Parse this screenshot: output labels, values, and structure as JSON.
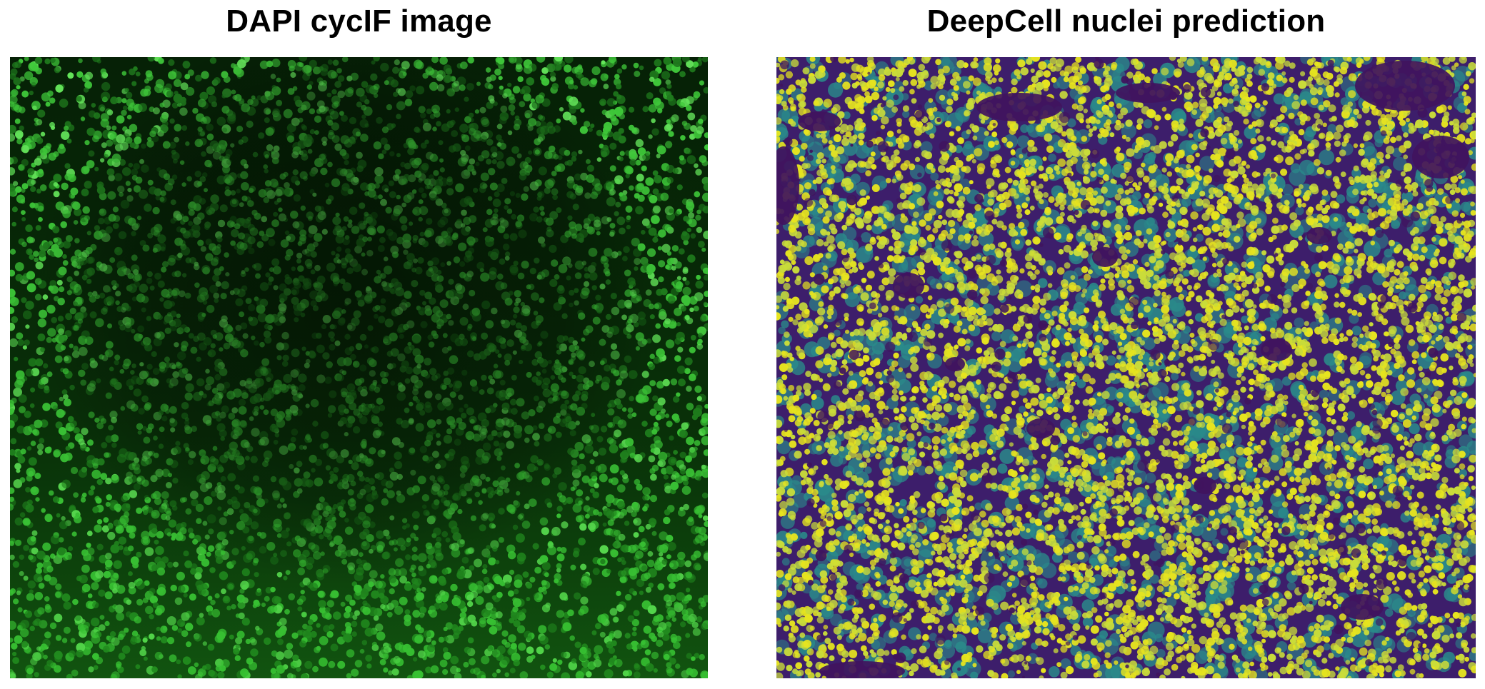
{
  "panels": [
    {
      "title": "DAPI cycIF image",
      "image_icon": "dapi-green-fluorescence-image",
      "colors": {
        "background": "#062106",
        "nuclei": "#3fc93a",
        "nuclei_bright": "#66e85c",
        "nuclei_dim": "#1f7a1d"
      }
    },
    {
      "title": "DeepCell nuclei prediction",
      "image_icon": "viridis-nuclei-probability-map",
      "colors": {
        "background": "#3d1e6b",
        "mid": "#2a8a8a",
        "nuclei": "#c9dc3a",
        "nuclei_bright": "#e6e41f",
        "empty": "#40145e"
      }
    }
  ]
}
